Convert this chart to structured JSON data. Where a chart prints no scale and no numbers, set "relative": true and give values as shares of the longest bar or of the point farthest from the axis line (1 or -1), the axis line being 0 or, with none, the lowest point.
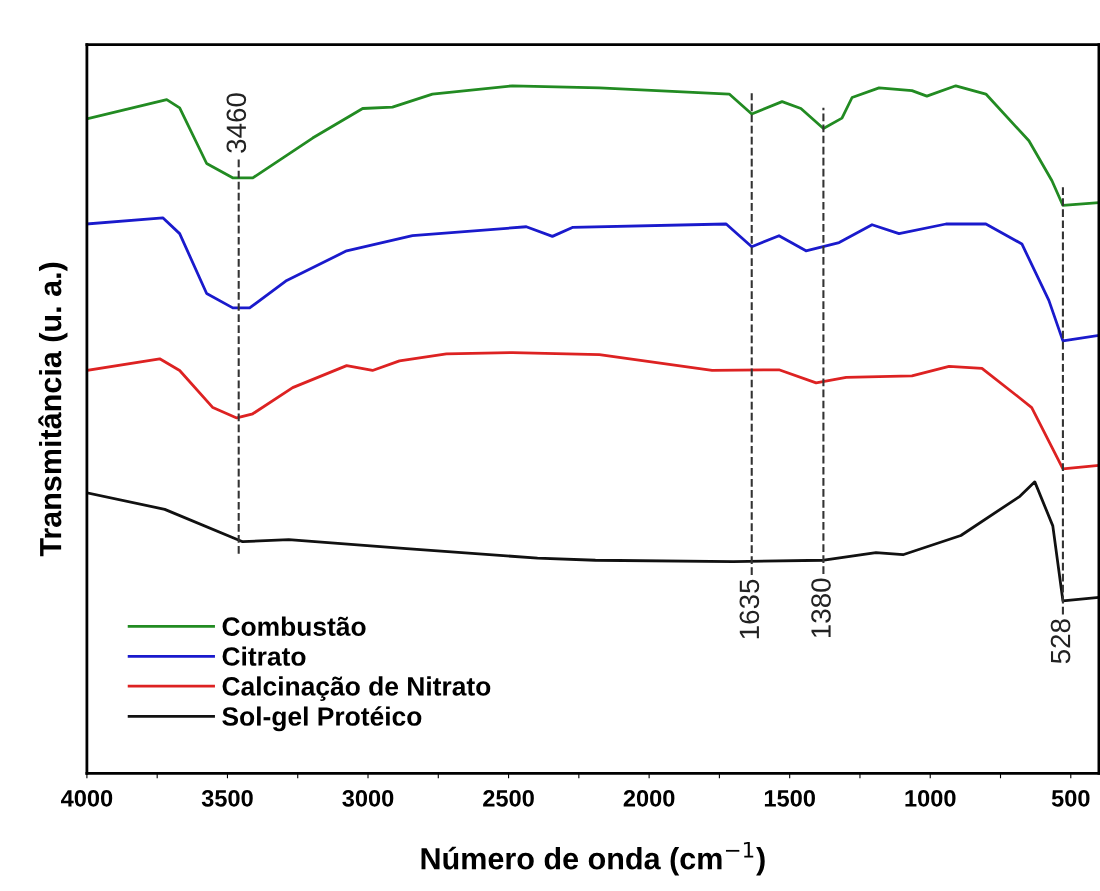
{
  "chart_data": {
    "type": "line",
    "relative": true,
    "xlabel": "Número de onda (cm$^{−1}$)",
    "ylabel": "Transmitância (u. a.)",
    "xlim": [
      4000,
      400
    ],
    "xticks": [
      4000,
      {
        "value": 3750,
        "label": null
      },
      3500,
      {
        "value": 3250,
        "label": null
      },
      3000,
      {
        "value": 2750,
        "label": null
      },
      2500,
      {
        "value": 2250,
        "label": null
      },
      2000,
      {
        "value": 1750,
        "label": null
      },
      1500,
      {
        "value": 1250,
        "label": null
      },
      1000,
      {
        "value": 750,
        "label": null
      },
      500
    ],
    "grid": false,
    "legend": "bottom left",
    "line_style": "solid",
    "marker": "none",
    "tick_labels": "x",
    "series": [
      {
        "name": "Combustão",
        "color": "#228b22",
        "x": [
          4000,
          3716,
          3670,
          3574,
          3480,
          3410,
          3197,
          3019,
          2913,
          2771,
          2486,
          2177,
          1715,
          1635,
          1527,
          1460,
          1380,
          1314,
          1278,
          1182,
          1065,
          1012,
          909,
          802,
          649,
          567,
          528,
          400
        ],
        "values": [
          0.952,
          0.98,
          0.968,
          0.887,
          0.866,
          0.866,
          0.924,
          0.967,
          0.969,
          0.988,
          1.0,
          0.997,
          0.988,
          0.959,
          0.977,
          0.967,
          0.938,
          0.953,
          0.983,
          0.997,
          0.993,
          0.985,
          1.0,
          0.988,
          0.92,
          0.862,
          0.826,
          0.83
        ]
      },
      {
        "name": "Citrato",
        "color": "#1a1acc",
        "x": [
          4000,
          3730,
          3670,
          3574,
          3481,
          3421,
          3289,
          3076,
          2842,
          2437,
          2344,
          2273,
          1726,
          1635,
          1538,
          1442,
          1324,
          1207,
          1111,
          944,
          802,
          674,
          578,
          528,
          400
        ],
        "values": [
          0.799,
          0.808,
          0.785,
          0.698,
          0.677,
          0.677,
          0.717,
          0.76,
          0.782,
          0.795,
          0.781,
          0.794,
          0.799,
          0.766,
          0.782,
          0.76,
          0.772,
          0.798,
          0.785,
          0.799,
          0.799,
          0.77,
          0.688,
          0.629,
          0.637
        ]
      },
      {
        "name": "Calcinação de Nitrato",
        "color": "#dd2222",
        "x": [
          4000,
          3741,
          3670,
          3552,
          3467,
          3410,
          3268,
          3076,
          2984,
          2888,
          2721,
          2486,
          2177,
          1776,
          1538,
          1406,
          1299,
          1065,
          933,
          816,
          685,
          639,
          528,
          400
        ],
        "values": [
          0.586,
          0.603,
          0.586,
          0.532,
          0.517,
          0.523,
          0.561,
          0.593,
          0.586,
          0.6,
          0.61,
          0.612,
          0.609,
          0.586,
          0.587,
          0.568,
          0.576,
          0.578,
          0.592,
          0.589,
          0.547,
          0.532,
          0.443,
          0.448
        ]
      },
      {
        "name": "Sol-gel Protéico",
        "color": "#111111",
        "x": [
          4000,
          3723,
          3446,
          3282,
          2863,
          2397,
          2191,
          1701,
          1378,
          1193,
          1097,
          891,
          681,
          628,
          564,
          528,
          400
        ],
        "values": [
          0.408,
          0.384,
          0.337,
          0.34,
          0.327,
          0.313,
          0.31,
          0.308,
          0.31,
          0.321,
          0.318,
          0.346,
          0.403,
          0.424,
          0.36,
          0.251,
          0.256
        ]
      }
    ],
    "ref_lines": [
      {
        "axis": "x",
        "value": 3460,
        "label": "3460",
        "color": "#333333",
        "line_style": "dashed"
      },
      {
        "axis": "x",
        "value": 1635,
        "label": "1635",
        "color": "#333333",
        "line_style": "dashed"
      },
      {
        "axis": "x",
        "value": 1380,
        "label": "1380",
        "color": "#333333",
        "line_style": "dashed"
      },
      {
        "axis": "x",
        "value": 528,
        "label": "528",
        "color": "#333333",
        "line_style": "dashed"
      }
    ]
  }
}
